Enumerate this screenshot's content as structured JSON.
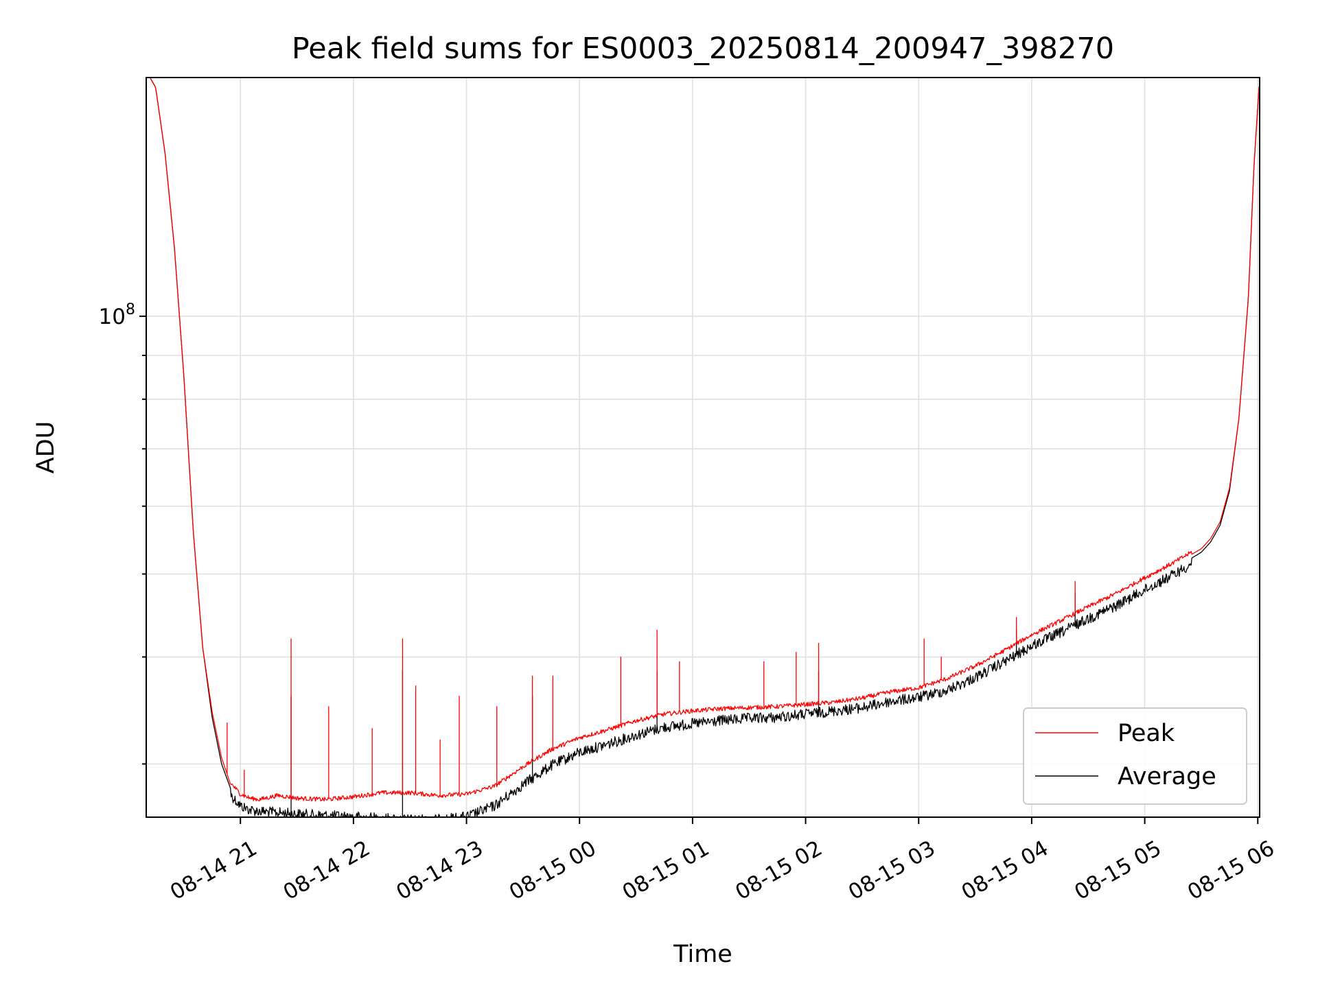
{
  "chart_data": {
    "type": "line",
    "title": "Peak field sums for ES0003_20250814_200947_398270",
    "xlabel": "Time",
    "ylabel": "ADU",
    "yscale": "log",
    "grid": true,
    "legend_position": "lower right",
    "x_tick_labels": [
      "08-14 21",
      "08-14 22",
      "08-14 23",
      "08-15 00",
      "08-15 01",
      "08-15 02",
      "08-15 03",
      "08-15 04",
      "08-15 05",
      "08-15 06"
    ],
    "y_tick_label": {
      "base": "10",
      "exponent": "8"
    },
    "xlim": [
      "2025-08-14 20:10",
      "2025-08-15 06:01"
    ],
    "ylim": [
      26000000.0,
      190000000.0
    ],
    "series": [
      {
        "name": "Peak",
        "color": "#ff0000",
        "x": [
          "2025-08-14 20:12",
          "2025-08-14 20:15",
          "2025-08-14 20:20",
          "2025-08-14 20:25",
          "2025-08-14 20:30",
          "2025-08-14 20:35",
          "2025-08-14 20:40",
          "2025-08-14 20:45",
          "2025-08-14 20:50",
          "2025-08-14 20:55",
          "2025-08-14 21:00",
          "2025-08-14 21:05",
          "2025-08-14 21:10",
          "2025-08-14 21:20",
          "2025-08-14 21:30",
          "2025-08-14 21:45",
          "2025-08-14 22:00",
          "2025-08-14 22:15",
          "2025-08-14 22:30",
          "2025-08-14 22:45",
          "2025-08-14 23:00",
          "2025-08-14 23:15",
          "2025-08-14 23:30",
          "2025-08-14 23:45",
          "2025-08-15 00:00",
          "2025-08-15 00:15",
          "2025-08-15 00:30",
          "2025-08-15 00:45",
          "2025-08-15 01:00",
          "2025-08-15 01:15",
          "2025-08-15 01:30",
          "2025-08-15 01:45",
          "2025-08-15 02:00",
          "2025-08-15 02:15",
          "2025-08-15 02:30",
          "2025-08-15 02:45",
          "2025-08-15 03:00",
          "2025-08-15 03:15",
          "2025-08-15 03:30",
          "2025-08-15 03:45",
          "2025-08-15 04:00",
          "2025-08-15 04:15",
          "2025-08-15 04:30",
          "2025-08-15 04:45",
          "2025-08-15 05:00",
          "2025-08-15 05:15",
          "2025-08-15 05:30",
          "2025-08-15 05:35",
          "2025-08-15 05:40",
          "2025-08-15 05:45",
          "2025-08-15 05:50",
          "2025-08-15 05:55",
          "2025-08-15 05:58",
          "2025-08-15 06:01"
        ],
        "y": [
          190000000.0,
          185000000.0,
          155000000.0,
          120000000.0,
          85000000.0,
          56000000.0,
          41000000.0,
          34500000.0,
          30500000.0,
          28300000.0,
          27500000.0,
          27200000.0,
          27100000.0,
          27400000.0,
          27200000.0,
          27100000.0,
          27300000.0,
          27600000.0,
          27600000.0,
          27400000.0,
          27500000.0,
          28100000.0,
          29600000.0,
          31000000.0,
          32000000.0,
          32700000.0,
          33500000.0,
          34100000.0,
          34400000.0,
          34600000.0,
          34700000.0,
          34800000.0,
          35000000.0,
          35200000.0,
          35600000.0,
          36200000.0,
          36600000.0,
          37500000.0,
          38800000.0,
          40400000.0,
          42200000.0,
          43800000.0,
          45500000.0,
          47200000.0,
          49200000.0,
          51200000.0,
          53500000.0,
          55000000.0,
          57500000.0,
          63000000.0,
          76000000.0,
          105000000.0,
          150000000.0,
          190000000.0
        ],
        "spikes": [
          {
            "x": "2025-08-14 20:53",
            "y": 33500000.0
          },
          {
            "x": "2025-08-14 21:02",
            "y": 29500000.0
          },
          {
            "x": "2025-08-14 21:27",
            "y": 42000000.0
          },
          {
            "x": "2025-08-14 21:47",
            "y": 35000000.0
          },
          {
            "x": "2025-08-14 22:10",
            "y": 33000000.0
          },
          {
            "x": "2025-08-14 22:26",
            "y": 42000000.0
          },
          {
            "x": "2025-08-14 22:33",
            "y": 37000000.0
          },
          {
            "x": "2025-08-14 22:46",
            "y": 32000000.0
          },
          {
            "x": "2025-08-14 22:56",
            "y": 36000000.0
          },
          {
            "x": "2025-08-14 23:16",
            "y": 35000000.0
          },
          {
            "x": "2025-08-14 23:35",
            "y": 38000000.0
          },
          {
            "x": "2025-08-14 23:46",
            "y": 38000000.0
          },
          {
            "x": "2025-08-15 00:22",
            "y": 40000000.0
          },
          {
            "x": "2025-08-15 00:41",
            "y": 43000000.0
          },
          {
            "x": "2025-08-15 00:53",
            "y": 39500000.0
          },
          {
            "x": "2025-08-15 01:38",
            "y": 39500000.0
          },
          {
            "x": "2025-08-15 01:55",
            "y": 40500000.0
          },
          {
            "x": "2025-08-15 02:07",
            "y": 41500000.0
          },
          {
            "x": "2025-08-15 03:03",
            "y": 42000000.0
          },
          {
            "x": "2025-08-15 03:12",
            "y": 40000000.0
          },
          {
            "x": "2025-08-15 03:52",
            "y": 44500000.0
          },
          {
            "x": "2025-08-15 04:23",
            "y": 49000000.0
          }
        ]
      },
      {
        "name": "Average",
        "color": "#000000",
        "x": [
          "2025-08-14 20:12",
          "2025-08-14 20:15",
          "2025-08-14 20:20",
          "2025-08-14 20:25",
          "2025-08-14 20:30",
          "2025-08-14 20:35",
          "2025-08-14 20:40",
          "2025-08-14 20:45",
          "2025-08-14 20:50",
          "2025-08-14 20:55",
          "2025-08-14 21:00",
          "2025-08-14 21:05",
          "2025-08-14 21:10",
          "2025-08-14 21:20",
          "2025-08-14 21:30",
          "2025-08-14 21:45",
          "2025-08-14 22:00",
          "2025-08-14 22:15",
          "2025-08-14 22:30",
          "2025-08-14 22:45",
          "2025-08-14 23:00",
          "2025-08-14 23:15",
          "2025-08-14 23:30",
          "2025-08-14 23:45",
          "2025-08-15 00:00",
          "2025-08-15 00:15",
          "2025-08-15 00:30",
          "2025-08-15 00:45",
          "2025-08-15 01:00",
          "2025-08-15 01:15",
          "2025-08-15 01:30",
          "2025-08-15 01:45",
          "2025-08-15 02:00",
          "2025-08-15 02:15",
          "2025-08-15 02:30",
          "2025-08-15 02:45",
          "2025-08-15 03:00",
          "2025-08-15 03:15",
          "2025-08-15 03:30",
          "2025-08-15 03:45",
          "2025-08-15 04:00",
          "2025-08-15 04:15",
          "2025-08-15 04:30",
          "2025-08-15 04:45",
          "2025-08-15 05:00",
          "2025-08-15 05:15",
          "2025-08-15 05:30",
          "2025-08-15 05:35",
          "2025-08-15 05:40",
          "2025-08-15 05:45",
          "2025-08-15 05:50",
          "2025-08-15 05:55",
          "2025-08-15 05:58",
          "2025-08-15 06:01"
        ],
        "y": [
          190000000.0,
          185000000.0,
          155000000.0,
          120000000.0,
          85000000.0,
          56000000.0,
          41000000.0,
          34000000.0,
          30000000.0,
          28000000.0,
          27200000.0,
          26900000.0,
          26800000.0,
          26700000.0,
          26600000.0,
          26500000.0,
          26400000.0,
          26300000.0,
          26200000.0,
          26200000.0,
          26400000.0,
          27200000.0,
          28800000.0,
          30300000.0,
          31400000.0,
          32100000.0,
          32900000.0,
          33600000.0,
          33900000.0,
          34200000.0,
          34400000.0,
          34500000.0,
          34800000.0,
          35100000.0,
          35400000.0,
          36000000.0,
          36400000.0,
          37100000.0,
          38400000.0,
          40000000.0,
          41800000.0,
          43300000.0,
          45000000.0,
          46600000.0,
          48600000.0,
          50600000.0,
          53000000.0,
          54500000.0,
          57000000.0,
          62500000.0,
          76000000.0,
          105000000.0,
          150000000.0,
          190000000.0
        ],
        "spikes": [
          {
            "x": "2025-08-14 21:27",
            "y": 36000000.0
          },
          {
            "x": "2025-08-14 22:26",
            "y": 38500000.0
          },
          {
            "x": "2025-08-14 23:35",
            "y": 36000000.0
          },
          {
            "x": "2025-08-15 00:41",
            "y": 38500000.0
          },
          {
            "x": "2025-08-15 02:07",
            "y": 38500000.0
          },
          {
            "x": "2025-08-15 03:52",
            "y": 43000000.0
          },
          {
            "x": "2025-08-15 04:23",
            "y": 47500000.0
          }
        ]
      }
    ]
  }
}
